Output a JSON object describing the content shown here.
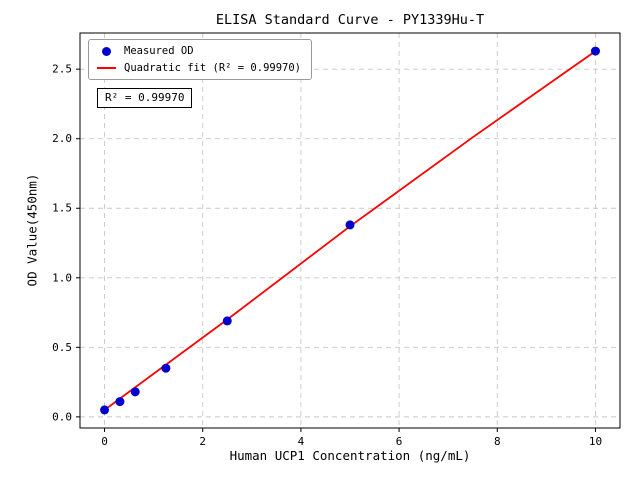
{
  "figure": {
    "background": "#ffffff"
  },
  "chart_data": {
    "type": "scatter",
    "title": "ELISA Standard Curve - PY1339Hu-T",
    "xlabel": "Human UCP1 Concentration (ng/mL)",
    "ylabel": "OD Value(450nm)",
    "xlim": [
      -0.5,
      10.5
    ],
    "ylim": [
      -0.08,
      2.76
    ],
    "grid": true,
    "grid_style": "dashed",
    "legend_position": "upper-left",
    "xticks": {
      "values": [
        0,
        2,
        4,
        6,
        8,
        10
      ],
      "labels": [
        "0",
        "2",
        "4",
        "6",
        "8",
        "10"
      ]
    },
    "yticks": {
      "values": [
        0,
        0.5,
        1.0,
        1.5,
        2.0,
        2.5
      ],
      "labels": [
        "0.0",
        "0.5",
        "1.0",
        "1.5",
        "2.0",
        "2.5"
      ]
    },
    "colors": {
      "measured": "#0000cd",
      "fit": "#ff0000",
      "grid": "#c8c8c8",
      "frame": "#000000"
    },
    "series": [
      {
        "name": "Quadratic fit",
        "type": "line",
        "color": "#ff0000",
        "x": [
          0,
          2.5,
          5,
          7.5,
          10
        ],
        "y": [
          0.05,
          0.7,
          1.37,
          2.01,
          2.63
        ]
      },
      {
        "name": "Measured OD",
        "type": "scatter",
        "color": "#0000cd",
        "x": [
          0,
          0.313,
          0.625,
          1.25,
          2.5,
          5,
          10
        ],
        "y": [
          0.05,
          0.11,
          0.18,
          0.35,
          0.69,
          1.38,
          2.63
        ]
      }
    ],
    "legend": [
      {
        "label": "Measured OD",
        "marker": "dot",
        "color": "#0000cd"
      },
      {
        "label": "Quadratic fit (R² = 0.99970)",
        "marker": "line",
        "color": "#ff0000"
      }
    ],
    "annotation": "R² = 0.99970",
    "r_squared": "0.99970"
  }
}
